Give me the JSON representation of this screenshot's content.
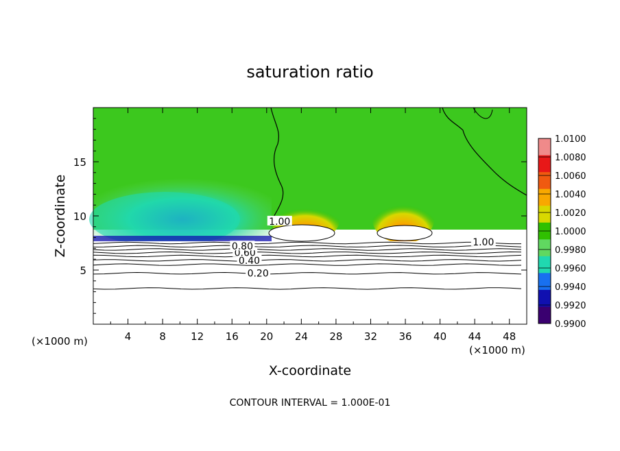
{
  "chart_data": {
    "type": "heatmap",
    "title": "saturation ratio",
    "xlabel": "X-coordinate",
    "ylabel": "Z-coordinate",
    "x_unit_left": "(×1000 m)",
    "x_unit_right": "(×1000 m)",
    "footer": "CONTOUR INTERVAL = 1.000E-01",
    "xlim": [
      0,
      50
    ],
    "ylim": [
      0,
      20
    ],
    "x_ticks": [
      4,
      8,
      12,
      16,
      20,
      24,
      28,
      32,
      36,
      40,
      44,
      48
    ],
    "y_ticks": [
      5,
      10,
      15
    ],
    "colorbar": {
      "levels": [
        "1.0100",
        "1.0080",
        "1.0060",
        "1.0040",
        "1.0020",
        "1.0000",
        "0.9980",
        "0.9960",
        "0.9940",
        "0.9920",
        "0.9900"
      ],
      "colors": [
        "#f08a8a",
        "#e81818",
        "#f05a10",
        "#f8a800",
        "#d8d800",
        "#30c000",
        "#60d860",
        "#20d8b0",
        "#1870f0",
        "#1010b0",
        "#3a0070"
      ],
      "range": [
        0.99,
        1.01
      ]
    },
    "contour_labels": [
      {
        "text": "0.20",
        "x": 19.0,
        "z": 4.7
      },
      {
        "text": "0.40",
        "x": 18.0,
        "z": 5.9
      },
      {
        "text": "0.60",
        "x": 17.5,
        "z": 6.6
      },
      {
        "text": "0.80",
        "x": 17.2,
        "z": 7.2
      },
      {
        "text": "1.00",
        "x": 21.5,
        "z": 9.5
      },
      {
        "text": "1.00",
        "x": 45.0,
        "z": 7.6
      }
    ],
    "contour_levels_z": [
      3.3,
      4.7,
      5.5,
      5.9,
      6.3,
      6.6,
      6.9,
      7.2,
      7.5
    ]
  }
}
